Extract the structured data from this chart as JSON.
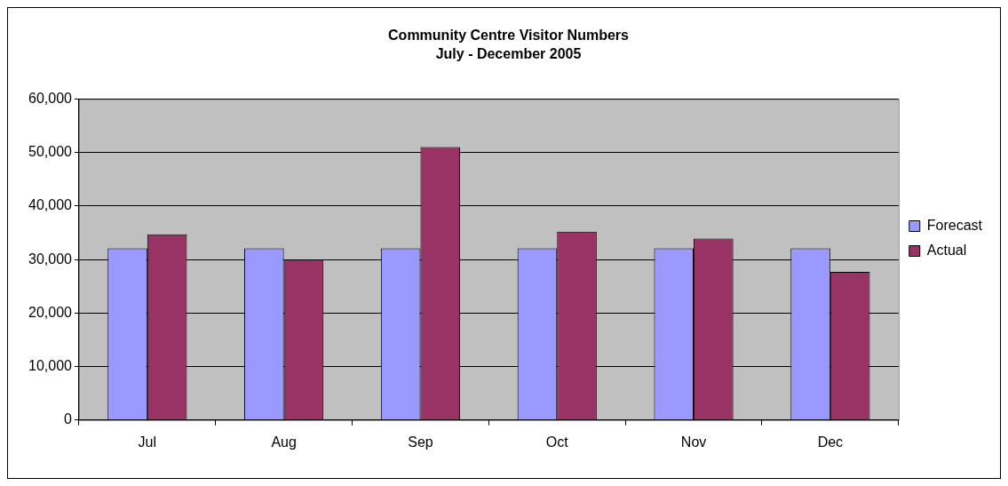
{
  "chart_data": {
    "type": "bar",
    "title": "Community Centre Visitor Numbers",
    "subtitle": "July - December 2005",
    "categories": [
      "Jul",
      "Aug",
      "Sep",
      "Oct",
      "Nov",
      "Dec"
    ],
    "series": [
      {
        "name": "Forecast",
        "color": "#9999ff",
        "values": [
          32100,
          32100,
          32100,
          32100,
          32100,
          32100
        ]
      },
      {
        "name": "Actual",
        "color": "#993366",
        "values": [
          34700,
          30000,
          51000,
          35200,
          33900,
          27700
        ]
      }
    ],
    "ylim": [
      0,
      60000
    ],
    "yticks": [
      0,
      {
        "value": 10000,
        "label": "10,000"
      },
      {
        "value": 20000,
        "label": "20,000"
      },
      {
        "value": 30000,
        "label": "30,000"
      },
      {
        "value": 40000,
        "label": "40,000"
      },
      {
        "value": 50000,
        "label": "50,000"
      },
      {
        "value": 60000,
        "label": "60,000"
      }
    ],
    "grid": "y",
    "legend": "right"
  }
}
